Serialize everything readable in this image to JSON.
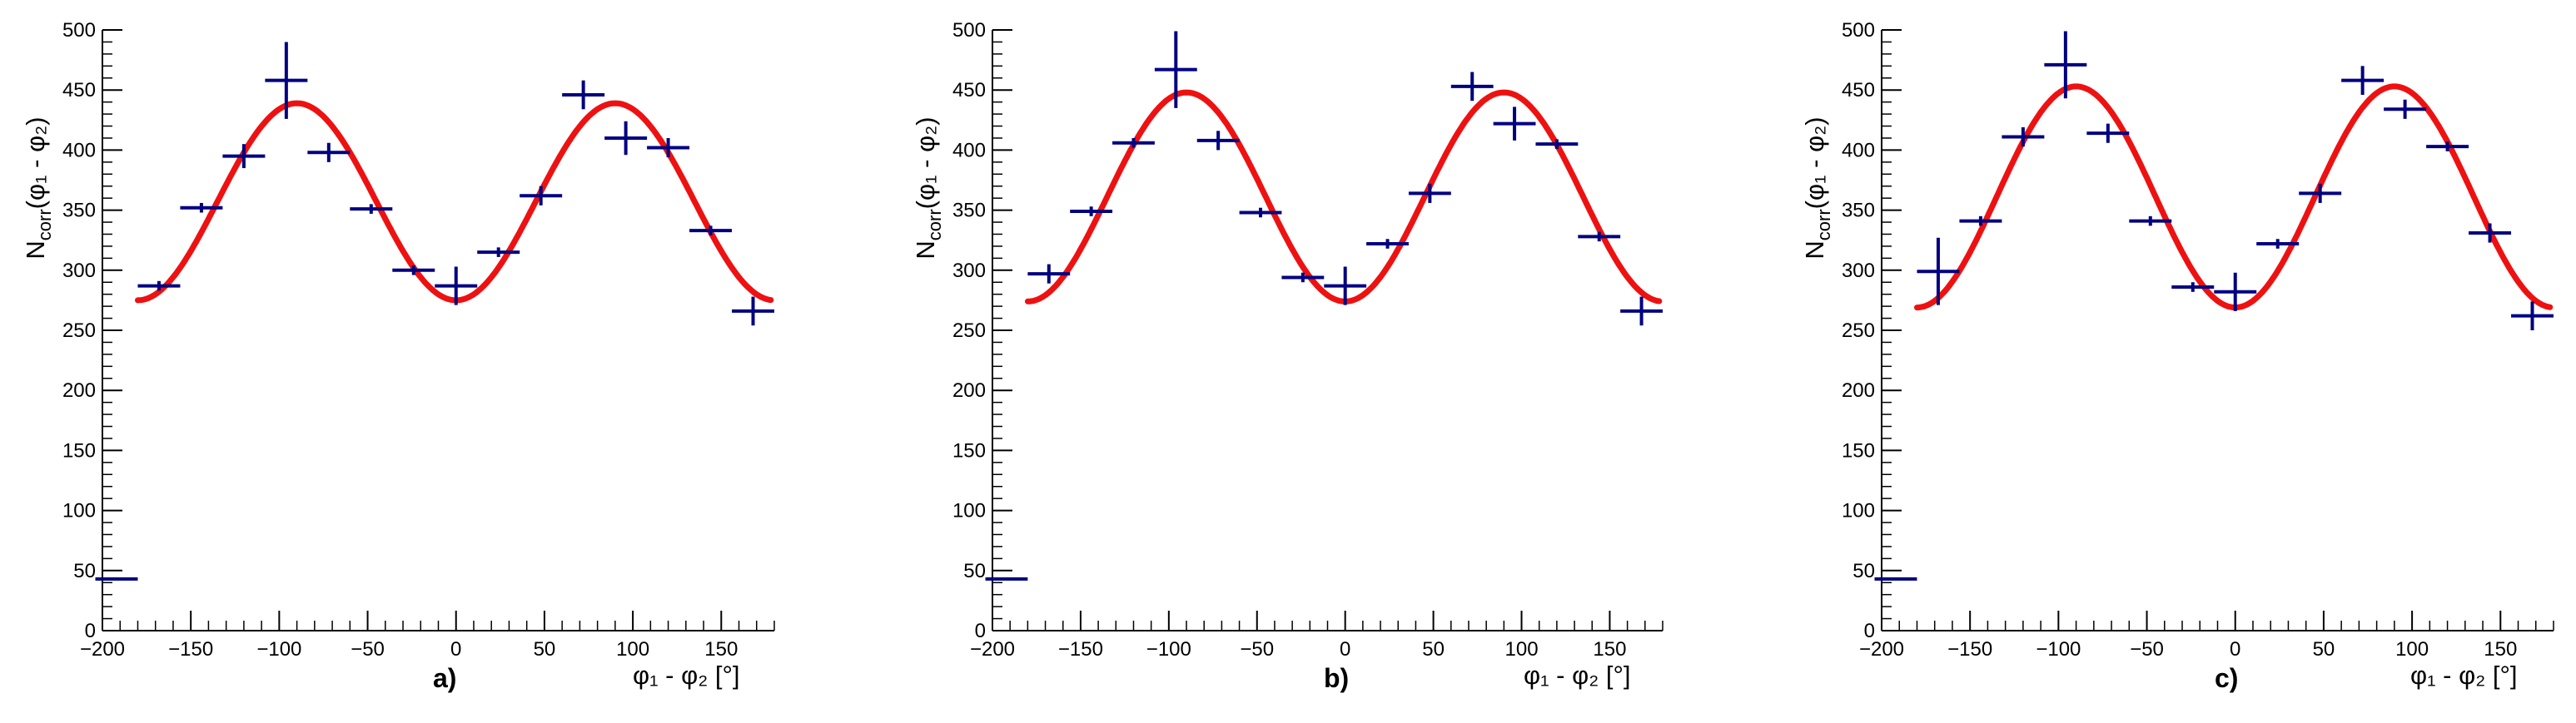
{
  "chart_data": [
    {
      "type": "scatter",
      "panel_label": "a)",
      "xlabel": "φ₁ - φ₂ [°]",
      "ylabel": "N_corr(φ₁ - φ₂)",
      "xlim": [
        -200,
        180
      ],
      "ylim": [
        0,
        500
      ],
      "x_ticks": [
        -200,
        -150,
        -100,
        -50,
        0,
        50,
        100,
        150
      ],
      "y_ticks": [
        0,
        50,
        100,
        150,
        200,
        250,
        300,
        350,
        400,
        450,
        500
      ],
      "bin_half_width": 12,
      "points": [
        {
          "x": -192,
          "y": 43,
          "err": 0
        },
        {
          "x": -168,
          "y": 287,
          "err": 4
        },
        {
          "x": -144,
          "y": 352,
          "err": 4
        },
        {
          "x": -120,
          "y": 395,
          "err": 10
        },
        {
          "x": -96,
          "y": 458,
          "err": 32
        },
        {
          "x": -72,
          "y": 398,
          "err": 8
        },
        {
          "x": -48,
          "y": 351,
          "err": 4
        },
        {
          "x": -24,
          "y": 300,
          "err": 4
        },
        {
          "x": 0,
          "y": 287,
          "err": 16
        },
        {
          "x": 24,
          "y": 315,
          "err": 4
        },
        {
          "x": 48,
          "y": 362,
          "err": 8
        },
        {
          "x": 72,
          "y": 446,
          "err": 12
        },
        {
          "x": 96,
          "y": 410,
          "err": 14
        },
        {
          "x": 120,
          "y": 402,
          "err": 8
        },
        {
          "x": 144,
          "y": 333,
          "err": 4
        },
        {
          "x": 168,
          "y": 266,
          "err": 12
        }
      ],
      "fit": {
        "label": "fit",
        "color": "#ee1111",
        "model": "A + B*cos(2x)",
        "x_range": [
          -180,
          178
        ],
        "mean": 357,
        "amplitude": -82
      }
    },
    {
      "type": "scatter",
      "panel_label": "b)",
      "xlabel": "φ₁ - φ₂ [°]",
      "ylabel": "N_corr(φ₁ - φ₂)",
      "xlim": [
        -200,
        180
      ],
      "ylim": [
        0,
        500
      ],
      "x_ticks": [
        -200,
        -150,
        -100,
        -50,
        0,
        50,
        100,
        150
      ],
      "y_ticks": [
        0,
        50,
        100,
        150,
        200,
        250,
        300,
        350,
        400,
        450,
        500
      ],
      "bin_half_width": 12,
      "points": [
        {
          "x": -192,
          "y": 43,
          "err": 0
        },
        {
          "x": -168,
          "y": 297,
          "err": 8
        },
        {
          "x": -144,
          "y": 349,
          "err": 4
        },
        {
          "x": -120,
          "y": 406,
          "err": 4
        },
        {
          "x": -96,
          "y": 467,
          "err": 32
        },
        {
          "x": -72,
          "y": 408,
          "err": 8
        },
        {
          "x": -48,
          "y": 348,
          "err": 4
        },
        {
          "x": -24,
          "y": 294,
          "err": 4
        },
        {
          "x": 0,
          "y": 287,
          "err": 16
        },
        {
          "x": 24,
          "y": 322,
          "err": 4
        },
        {
          "x": 48,
          "y": 364,
          "err": 8
        },
        {
          "x": 72,
          "y": 453,
          "err": 12
        },
        {
          "x": 96,
          "y": 422,
          "err": 14
        },
        {
          "x": 120,
          "y": 405,
          "err": 4
        },
        {
          "x": 144,
          "y": 328,
          "err": 4
        },
        {
          "x": 168,
          "y": 266,
          "err": 12
        }
      ],
      "fit": {
        "label": "fit",
        "color": "#ee1111",
        "model": "A + B*cos(2x)",
        "x_range": [
          -180,
          178
        ],
        "mean": 361,
        "amplitude": -87
      }
    },
    {
      "type": "scatter",
      "panel_label": "c)",
      "xlabel": "φ₁ - φ₂ [°]",
      "ylabel": "N_corr(φ₁ - φ₂)",
      "xlim": [
        -200,
        180
      ],
      "ylim": [
        0,
        500
      ],
      "x_ticks": [
        -200,
        -150,
        -100,
        -50,
        0,
        50,
        100,
        150
      ],
      "y_ticks": [
        0,
        50,
        100,
        150,
        200,
        250,
        300,
        350,
        400,
        450,
        500
      ],
      "bin_half_width": 12,
      "points": [
        {
          "x": -192,
          "y": 43,
          "err": 0
        },
        {
          "x": -168,
          "y": 299,
          "err": 28
        },
        {
          "x": -144,
          "y": 341,
          "err": 4
        },
        {
          "x": -120,
          "y": 411,
          "err": 8
        },
        {
          "x": -96,
          "y": 471,
          "err": 28
        },
        {
          "x": -72,
          "y": 414,
          "err": 8
        },
        {
          "x": -48,
          "y": 341,
          "err": 4
        },
        {
          "x": -24,
          "y": 286,
          "err": 4
        },
        {
          "x": 0,
          "y": 282,
          "err": 16
        },
        {
          "x": 24,
          "y": 322,
          "err": 4
        },
        {
          "x": 48,
          "y": 364,
          "err": 8
        },
        {
          "x": 72,
          "y": 458,
          "err": 12
        },
        {
          "x": 96,
          "y": 434,
          "err": 8
        },
        {
          "x": 120,
          "y": 403,
          "err": 4
        },
        {
          "x": 144,
          "y": 331,
          "err": 8
        },
        {
          "x": 168,
          "y": 262,
          "err": 12
        }
      ],
      "fit": {
        "label": "fit",
        "color": "#ee1111",
        "model": "A + B*cos(2x)",
        "x_range": [
          -180,
          178
        ],
        "mean": 361,
        "amplitude": -92
      }
    }
  ],
  "colors": {
    "data_points": "#000080",
    "fit_curve": "#ee1111",
    "axes": "#000000"
  }
}
